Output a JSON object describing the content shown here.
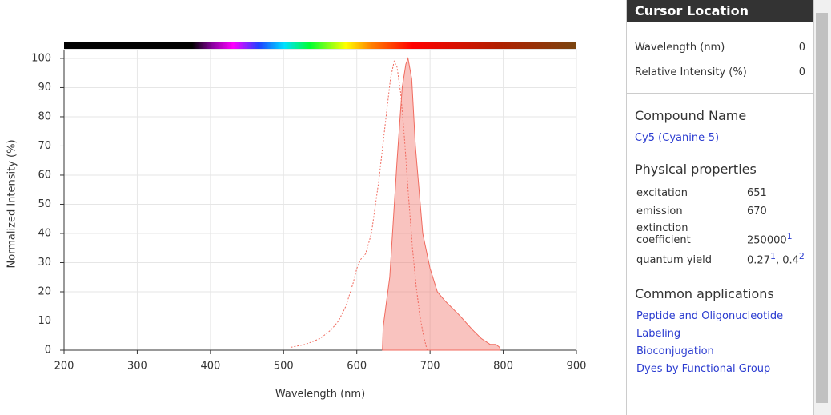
{
  "chart_data": {
    "type": "line",
    "x_label": "Wavelength (nm)",
    "y_label": "Normalized Intensity (%)",
    "xlim": [
      200,
      900
    ],
    "xticks": [
      200,
      300,
      400,
      500,
      600,
      700,
      800,
      900
    ],
    "ylim": [
      0,
      103
    ],
    "yticks": [
      0,
      10,
      20,
      30,
      40,
      50,
      60,
      70,
      80,
      90,
      100
    ],
    "grid": true,
    "series": [
      {
        "color": "#f06a5e",
        "style": "dotted",
        "filled": false,
        "x": [
          510,
          530,
          550,
          565,
          575,
          585,
          595,
          600,
          605,
          612,
          620,
          630,
          640,
          646,
          651,
          655,
          660,
          665,
          670,
          676,
          681,
          686,
          691,
          696
        ],
        "values": [
          1,
          2,
          4,
          7,
          10,
          15,
          23,
          28,
          31,
          33,
          40,
          58,
          80,
          93,
          99,
          97,
          88,
          73,
          55,
          35,
          22,
          12,
          5,
          0
        ]
      },
      {
        "color": "#f06a5e",
        "style": "solid",
        "filled": true,
        "x": [
          635,
          636,
          645,
          655,
          662,
          667,
          670,
          675,
          680,
          690,
          700,
          710,
          720,
          740,
          758,
          770,
          782,
          790,
          795,
          796
        ],
        "values": [
          0,
          8,
          25,
          65,
          90,
          98,
          100,
          93,
          70,
          40,
          28,
          20,
          17,
          12,
          7,
          4,
          2,
          2,
          1,
          0
        ]
      }
    ]
  },
  "sidebar": {
    "cursor": {
      "title": "Cursor Location",
      "rows": [
        {
          "label": "Wavelength (nm)",
          "value": 0
        },
        {
          "label": "Relative Intensity (%)",
          "value": 0
        }
      ]
    },
    "compound": {
      "title": "Compound Name",
      "name": "Cy5 (Cyanine-5)"
    },
    "properties": {
      "title": "Physical properties",
      "excitation": {
        "label": "excitation",
        "value": 651
      },
      "emission": {
        "label": "emission",
        "value": 670
      },
      "extinction": {
        "label": "extinction coefficient",
        "value": 250000,
        "ref": "1"
      },
      "quantum_yield": {
        "label": "quantum yield",
        "values": [
          {
            "text": "0.27",
            "ref": "1"
          },
          {
            "text": "0.4",
            "ref": "2"
          }
        ],
        "separator": ", "
      }
    },
    "applications": {
      "title": "Common applications",
      "items": [
        "Peptide and Oligonucleotide Labeling",
        "Bioconjugation",
        "Dyes by Functional Group"
      ]
    }
  }
}
